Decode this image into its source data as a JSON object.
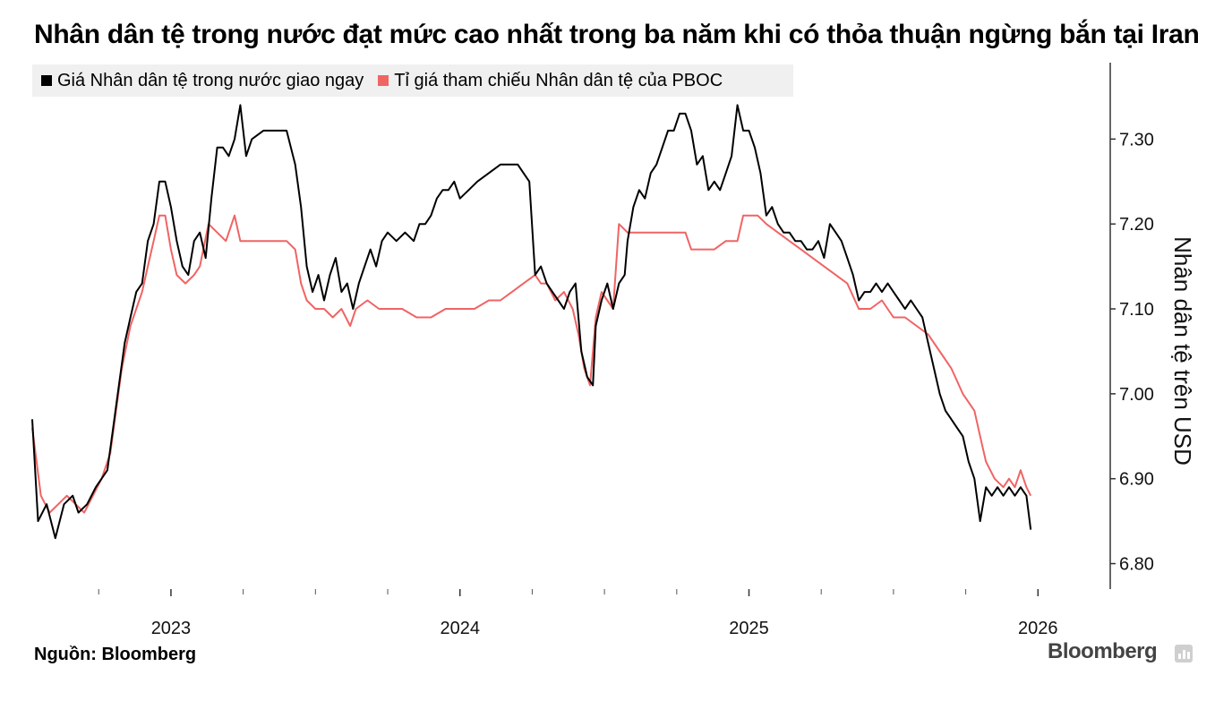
{
  "chart_data": {
    "type": "line",
    "title": "Nhân dân tệ trong nước đạt mức cao nhất trong ba năm khi có thỏa thuận ngừng bắn tại Iran",
    "xlabel": "",
    "ylabel": "Nhân dân tệ trên USD",
    "ylim": [
      6.77,
      7.39
    ],
    "xlim": [
      2022.52,
      2026.25
    ],
    "x_ticks": [
      {
        "value": 2023.0,
        "label": "2023"
      },
      {
        "value": 2024.0,
        "label": "2024"
      },
      {
        "value": 2025.0,
        "label": "2025"
      },
      {
        "value": 2026.0,
        "label": "2026"
      }
    ],
    "x_minor_ticks": [
      2022.75,
      2023.25,
      2023.5,
      2023.75,
      2024.25,
      2024.5,
      2024.75,
      2025.25,
      2025.5,
      2025.75
    ],
    "y_ticks": [
      {
        "value": 6.8,
        "label": "6.80"
      },
      {
        "value": 6.9,
        "label": "6.90"
      },
      {
        "value": 7.0,
        "label": "7.00"
      },
      {
        "value": 7.1,
        "label": "7.10"
      },
      {
        "value": 7.2,
        "label": "7.20"
      },
      {
        "value": 7.3,
        "label": "7.30"
      }
    ],
    "grid": false,
    "legend_position": "top-left",
    "series": [
      {
        "name": "Giá Nhân dân tệ trong nước giao ngay",
        "color": "#000000",
        "points": [
          [
            2022.52,
            6.97
          ],
          [
            2022.54,
            6.85
          ],
          [
            2022.57,
            6.87
          ],
          [
            2022.6,
            6.83
          ],
          [
            2022.63,
            6.87
          ],
          [
            2022.66,
            6.88
          ],
          [
            2022.68,
            6.86
          ],
          [
            2022.71,
            6.87
          ],
          [
            2022.74,
            6.89
          ],
          [
            2022.78,
            6.91
          ],
          [
            2022.8,
            6.96
          ],
          [
            2022.82,
            7.01
          ],
          [
            2022.84,
            7.06
          ],
          [
            2022.86,
            7.09
          ],
          [
            2022.88,
            7.12
          ],
          [
            2022.9,
            7.13
          ],
          [
            2022.92,
            7.18
          ],
          [
            2022.94,
            7.2
          ],
          [
            2022.96,
            7.25
          ],
          [
            2022.98,
            7.25
          ],
          [
            2023.0,
            7.22
          ],
          [
            2023.02,
            7.18
          ],
          [
            2023.04,
            7.15
          ],
          [
            2023.06,
            7.14
          ],
          [
            2023.08,
            7.18
          ],
          [
            2023.1,
            7.19
          ],
          [
            2023.12,
            7.16
          ],
          [
            2023.14,
            7.23
          ],
          [
            2023.16,
            7.29
          ],
          [
            2023.18,
            7.29
          ],
          [
            2023.2,
            7.28
          ],
          [
            2023.22,
            7.3
          ],
          [
            2023.24,
            7.34
          ],
          [
            2023.26,
            7.28
          ],
          [
            2023.28,
            7.3
          ],
          [
            2023.32,
            7.31
          ],
          [
            2023.36,
            7.31
          ],
          [
            2023.4,
            7.31
          ],
          [
            2023.43,
            7.27
          ],
          [
            2023.45,
            7.22
          ],
          [
            2023.47,
            7.15
          ],
          [
            2023.49,
            7.12
          ],
          [
            2023.51,
            7.14
          ],
          [
            2023.53,
            7.11
          ],
          [
            2023.55,
            7.14
          ],
          [
            2023.57,
            7.16
          ],
          [
            2023.59,
            7.12
          ],
          [
            2023.61,
            7.13
          ],
          [
            2023.63,
            7.1
          ],
          [
            2023.65,
            7.13
          ],
          [
            2023.67,
            7.15
          ],
          [
            2023.69,
            7.17
          ],
          [
            2023.71,
            7.15
          ],
          [
            2023.73,
            7.18
          ],
          [
            2023.75,
            7.19
          ],
          [
            2023.78,
            7.18
          ],
          [
            2023.81,
            7.19
          ],
          [
            2023.84,
            7.18
          ],
          [
            2023.86,
            7.2
          ],
          [
            2023.88,
            7.2
          ],
          [
            2023.9,
            7.21
          ],
          [
            2023.92,
            7.23
          ],
          [
            2023.94,
            7.24
          ],
          [
            2023.96,
            7.24
          ],
          [
            2023.98,
            7.25
          ],
          [
            2024.0,
            7.23
          ],
          [
            2024.03,
            7.24
          ],
          [
            2024.06,
            7.25
          ],
          [
            2024.1,
            7.26
          ],
          [
            2024.14,
            7.27
          ],
          [
            2024.18,
            7.27
          ],
          [
            2024.2,
            7.27
          ],
          [
            2024.22,
            7.26
          ],
          [
            2024.24,
            7.25
          ],
          [
            2024.26,
            7.14
          ],
          [
            2024.28,
            7.15
          ],
          [
            2024.3,
            7.13
          ],
          [
            2024.32,
            7.12
          ],
          [
            2024.34,
            7.11
          ],
          [
            2024.36,
            7.1
          ],
          [
            2024.38,
            7.12
          ],
          [
            2024.4,
            7.13
          ],
          [
            2024.42,
            7.05
          ],
          [
            2024.44,
            7.02
          ],
          [
            2024.46,
            7.01
          ],
          [
            2024.47,
            7.08
          ],
          [
            2024.49,
            7.11
          ],
          [
            2024.51,
            7.13
          ],
          [
            2024.53,
            7.1
          ],
          [
            2024.55,
            7.13
          ],
          [
            2024.57,
            7.14
          ],
          [
            2024.58,
            7.18
          ],
          [
            2024.6,
            7.22
          ],
          [
            2024.62,
            7.24
          ],
          [
            2024.64,
            7.23
          ],
          [
            2024.66,
            7.26
          ],
          [
            2024.68,
            7.27
          ],
          [
            2024.7,
            7.29
          ],
          [
            2024.72,
            7.31
          ],
          [
            2024.74,
            7.31
          ],
          [
            2024.76,
            7.33
          ],
          [
            2024.78,
            7.33
          ],
          [
            2024.8,
            7.31
          ],
          [
            2024.82,
            7.27
          ],
          [
            2024.84,
            7.28
          ],
          [
            2024.86,
            7.24
          ],
          [
            2024.88,
            7.25
          ],
          [
            2024.9,
            7.24
          ],
          [
            2024.92,
            7.26
          ],
          [
            2024.94,
            7.28
          ],
          [
            2024.96,
            7.34
          ],
          [
            2024.98,
            7.31
          ],
          [
            2025.0,
            7.31
          ],
          [
            2025.02,
            7.29
          ],
          [
            2025.04,
            7.26
          ],
          [
            2025.06,
            7.21
          ],
          [
            2025.08,
            7.22
          ],
          [
            2025.1,
            7.2
          ],
          [
            2025.12,
            7.19
          ],
          [
            2025.14,
            7.19
          ],
          [
            2025.16,
            7.18
          ],
          [
            2025.18,
            7.18
          ],
          [
            2025.2,
            7.17
          ],
          [
            2025.22,
            7.17
          ],
          [
            2025.24,
            7.18
          ],
          [
            2025.26,
            7.16
          ],
          [
            2025.28,
            7.2
          ],
          [
            2025.3,
            7.19
          ],
          [
            2025.32,
            7.18
          ],
          [
            2025.34,
            7.16
          ],
          [
            2025.36,
            7.14
          ],
          [
            2025.38,
            7.11
          ],
          [
            2025.4,
            7.12
          ],
          [
            2025.42,
            7.12
          ],
          [
            2025.44,
            7.13
          ],
          [
            2025.46,
            7.12
          ],
          [
            2025.48,
            7.13
          ],
          [
            2025.5,
            7.12
          ],
          [
            2025.52,
            7.11
          ],
          [
            2025.54,
            7.1
          ],
          [
            2025.56,
            7.11
          ],
          [
            2025.58,
            7.1
          ],
          [
            2025.6,
            7.09
          ],
          [
            2025.62,
            7.06
          ],
          [
            2025.64,
            7.03
          ],
          [
            2025.66,
            7.0
          ],
          [
            2025.68,
            6.98
          ],
          [
            2025.7,
            6.97
          ],
          [
            2025.72,
            6.96
          ],
          [
            2025.74,
            6.95
          ],
          [
            2025.76,
            6.92
          ],
          [
            2025.78,
            6.9
          ],
          [
            2025.8,
            6.85
          ],
          [
            2025.82,
            6.89
          ],
          [
            2025.84,
            6.88
          ],
          [
            2025.86,
            6.89
          ],
          [
            2025.88,
            6.88
          ],
          [
            2025.9,
            6.89
          ],
          [
            2025.92,
            6.88
          ],
          [
            2025.94,
            6.89
          ],
          [
            2025.96,
            6.88
          ],
          [
            2025.975,
            6.84
          ]
        ]
      },
      {
        "name": "Tỉ giá tham chiếu Nhân dân tệ của PBOC",
        "color": "#f06464",
        "points": [
          [
            2022.52,
            6.96
          ],
          [
            2022.55,
            6.88
          ],
          [
            2022.58,
            6.86
          ],
          [
            2022.61,
            6.87
          ],
          [
            2022.64,
            6.88
          ],
          [
            2022.67,
            6.87
          ],
          [
            2022.7,
            6.86
          ],
          [
            2022.73,
            6.88
          ],
          [
            2022.76,
            6.9
          ],
          [
            2022.79,
            6.93
          ],
          [
            2022.81,
            6.98
          ],
          [
            2022.83,
            7.03
          ],
          [
            2022.86,
            7.08
          ],
          [
            2022.88,
            7.1
          ],
          [
            2022.9,
            7.12
          ],
          [
            2022.92,
            7.15
          ],
          [
            2022.94,
            7.18
          ],
          [
            2022.96,
            7.21
          ],
          [
            2022.98,
            7.21
          ],
          [
            2023.0,
            7.17
          ],
          [
            2023.02,
            7.14
          ],
          [
            2023.05,
            7.13
          ],
          [
            2023.08,
            7.14
          ],
          [
            2023.1,
            7.15
          ],
          [
            2023.13,
            7.2
          ],
          [
            2023.16,
            7.19
          ],
          [
            2023.19,
            7.18
          ],
          [
            2023.22,
            7.21
          ],
          [
            2023.24,
            7.18
          ],
          [
            2023.26,
            7.18
          ],
          [
            2023.3,
            7.18
          ],
          [
            2023.35,
            7.18
          ],
          [
            2023.4,
            7.18
          ],
          [
            2023.43,
            7.17
          ],
          [
            2023.45,
            7.13
          ],
          [
            2023.47,
            7.11
          ],
          [
            2023.5,
            7.1
          ],
          [
            2023.53,
            7.1
          ],
          [
            2023.56,
            7.09
          ],
          [
            2023.59,
            7.1
          ],
          [
            2023.62,
            7.08
          ],
          [
            2023.64,
            7.1
          ],
          [
            2023.68,
            7.11
          ],
          [
            2023.72,
            7.1
          ],
          [
            2023.76,
            7.1
          ],
          [
            2023.8,
            7.1
          ],
          [
            2023.85,
            7.09
          ],
          [
            2023.9,
            7.09
          ],
          [
            2023.95,
            7.1
          ],
          [
            2024.0,
            7.1
          ],
          [
            2024.05,
            7.1
          ],
          [
            2024.1,
            7.11
          ],
          [
            2024.14,
            7.11
          ],
          [
            2024.18,
            7.12
          ],
          [
            2024.22,
            7.13
          ],
          [
            2024.26,
            7.14
          ],
          [
            2024.28,
            7.13
          ],
          [
            2024.3,
            7.13
          ],
          [
            2024.33,
            7.11
          ],
          [
            2024.36,
            7.12
          ],
          [
            2024.39,
            7.1
          ],
          [
            2024.41,
            7.07
          ],
          [
            2024.43,
            7.03
          ],
          [
            2024.45,
            7.01
          ],
          [
            2024.47,
            7.09
          ],
          [
            2024.49,
            7.12
          ],
          [
            2024.51,
            7.11
          ],
          [
            2024.53,
            7.1
          ],
          [
            2024.55,
            7.2
          ],
          [
            2024.58,
            7.19
          ],
          [
            2024.62,
            7.19
          ],
          [
            2024.66,
            7.19
          ],
          [
            2024.7,
            7.19
          ],
          [
            2024.74,
            7.19
          ],
          [
            2024.78,
            7.19
          ],
          [
            2024.8,
            7.17
          ],
          [
            2024.84,
            7.17
          ],
          [
            2024.88,
            7.17
          ],
          [
            2024.92,
            7.18
          ],
          [
            2024.96,
            7.18
          ],
          [
            2024.98,
            7.21
          ],
          [
            2025.0,
            7.21
          ],
          [
            2025.03,
            7.21
          ],
          [
            2025.06,
            7.2
          ],
          [
            2025.1,
            7.19
          ],
          [
            2025.14,
            7.18
          ],
          [
            2025.18,
            7.17
          ],
          [
            2025.22,
            7.16
          ],
          [
            2025.26,
            7.15
          ],
          [
            2025.3,
            7.14
          ],
          [
            2025.34,
            7.13
          ],
          [
            2025.38,
            7.1
          ],
          [
            2025.42,
            7.1
          ],
          [
            2025.46,
            7.11
          ],
          [
            2025.5,
            7.09
          ],
          [
            2025.54,
            7.09
          ],
          [
            2025.58,
            7.08
          ],
          [
            2025.62,
            7.07
          ],
          [
            2025.66,
            7.05
          ],
          [
            2025.7,
            7.03
          ],
          [
            2025.74,
            7.0
          ],
          [
            2025.78,
            6.98
          ],
          [
            2025.8,
            6.95
          ],
          [
            2025.82,
            6.92
          ],
          [
            2025.85,
            6.9
          ],
          [
            2025.88,
            6.89
          ],
          [
            2025.9,
            6.9
          ],
          [
            2025.92,
            6.89
          ],
          [
            2025.94,
            6.91
          ],
          [
            2025.96,
            6.89
          ],
          [
            2025.975,
            6.88
          ]
        ]
      }
    ]
  },
  "legend": {
    "items": [
      {
        "label": "Giá Nhân dân tệ trong nước giao ngay",
        "color": "#000000"
      },
      {
        "label": "Tỉ giá tham chiếu Nhân dân tệ của PBOC",
        "color": "#f06464"
      }
    ]
  },
  "footer": {
    "source": "Nguồn:  Bloomberg",
    "brand": "Bloomberg"
  }
}
